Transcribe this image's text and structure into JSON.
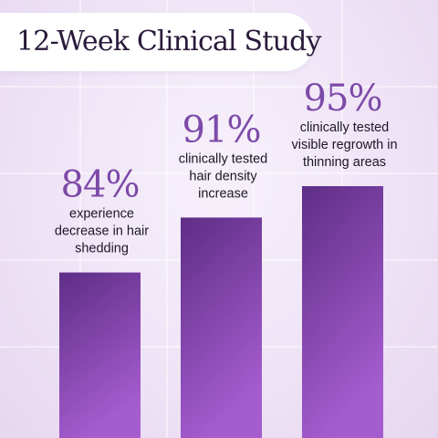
{
  "colors": {
    "bar_top": "#5e2e86",
    "bar_bottom": "#a55ccf",
    "percent_text": "#7d4aa8",
    "grid_line": "#ffffff"
  },
  "chart_data": {
    "type": "bar",
    "title": "12-Week Clinical Study",
    "xlabel": "",
    "ylabel": "",
    "ylim": [
      0,
      100
    ],
    "grid": true,
    "categories": [
      "experience decrease in hair shedding",
      "clinically tested hair density increase",
      "clinically tested visible regrowth in thinning areas"
    ],
    "values": [
      84,
      91,
      95
    ],
    "value_labels": [
      "84%",
      "91%",
      "95%"
    ],
    "descriptions": [
      [
        "experience",
        "decrease in hair",
        "shedding"
      ],
      [
        "clinically tested",
        "hair density",
        "increase"
      ],
      [
        "clinically tested",
        "visible regrowth in",
        "thinning areas"
      ]
    ]
  }
}
